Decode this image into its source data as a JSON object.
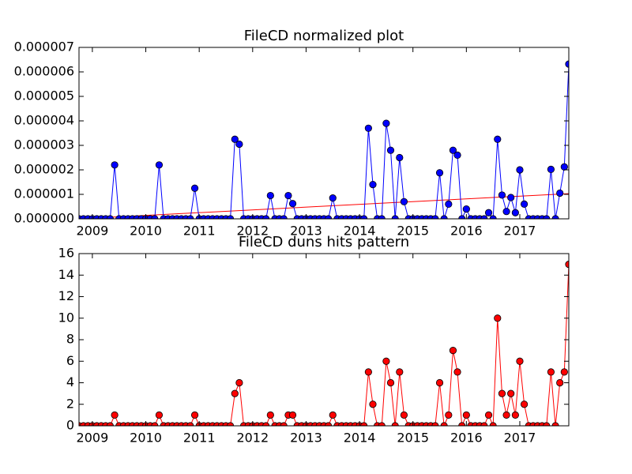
{
  "chart_data": [
    {
      "type": "line",
      "title": "FileCD normalized plot",
      "x": [
        2008.75,
        2008.833,
        2008.917,
        2009,
        2009.083,
        2009.167,
        2009.25,
        2009.333,
        2009.417,
        2009.5,
        2009.583,
        2009.667,
        2009.75,
        2009.833,
        2009.917,
        2010,
        2010.083,
        2010.167,
        2010.25,
        2010.333,
        2010.417,
        2010.5,
        2010.583,
        2010.667,
        2010.75,
        2010.833,
        2010.917,
        2011,
        2011.083,
        2011.167,
        2011.25,
        2011.333,
        2011.417,
        2011.5,
        2011.583,
        2011.667,
        2011.75,
        2011.833,
        2011.917,
        2012,
        2012.083,
        2012.167,
        2012.25,
        2012.333,
        2012.417,
        2012.5,
        2012.583,
        2012.667,
        2012.75,
        2012.833,
        2012.917,
        2013,
        2013.083,
        2013.167,
        2013.25,
        2013.333,
        2013.417,
        2013.5,
        2013.583,
        2013.667,
        2013.75,
        2013.833,
        2013.917,
        2014,
        2014.083,
        2014.167,
        2014.25,
        2014.333,
        2014.417,
        2014.5,
        2014.583,
        2014.667,
        2014.75,
        2014.833,
        2014.917,
        2015,
        2015.083,
        2015.167,
        2015.25,
        2015.333,
        2015.417,
        2015.5,
        2015.583,
        2015.667,
        2015.75,
        2015.833,
        2015.917,
        2016,
        2016.083,
        2016.167,
        2016.25,
        2016.333,
        2016.417,
        2016.5,
        2016.583,
        2016.667,
        2016.75,
        2016.833,
        2016.917,
        2017,
        2017.083,
        2017.167,
        2017.25,
        2017.333,
        2017.417,
        2017.5,
        2017.583,
        2017.667,
        2017.75,
        2017.833,
        2017.917
      ],
      "values": [
        0,
        0,
        0,
        0,
        0,
        0,
        0,
        0,
        2.2e-06,
        0,
        0,
        0,
        0,
        0,
        0,
        0,
        0,
        0,
        2.2e-06,
        0,
        0,
        0,
        0,
        0,
        0,
        0,
        1.25e-06,
        0,
        0,
        0,
        0,
        0,
        0,
        0,
        0,
        3.25e-06,
        3.05e-06,
        0,
        0,
        0,
        0,
        0,
        0,
        9.5e-07,
        0,
        0,
        0,
        9.5e-07,
        6.2e-07,
        0,
        0,
        0,
        0,
        0,
        0,
        0,
        0,
        8.5e-07,
        0,
        0,
        0,
        0,
        0,
        0,
        0,
        3.7e-06,
        1.4e-06,
        0,
        0,
        3.9e-06,
        2.8e-06,
        0,
        2.5e-06,
        7e-07,
        0,
        0,
        0,
        0,
        0,
        0,
        0,
        1.88e-06,
        0,
        6e-07,
        2.8e-06,
        2.6e-06,
        0,
        4e-07,
        0,
        0,
        0,
        0,
        2.5e-07,
        0,
        3.25e-06,
        9.7e-07,
        3e-07,
        8.7e-07,
        2.5e-07,
        2e-06,
        6e-07,
        0,
        0,
        0,
        0,
        0,
        2.02e-06,
        0,
        1.05e-06,
        2.12e-06,
        6.32e-06
      ],
      "color": "#0000ff",
      "marker_edge_color": "#000000",
      "trend_x": [
        2008.75,
        2017.917
      ],
      "trend_values": [
        0,
        1.03e-06
      ],
      "trend_color": "#ff0000",
      "xlim": [
        2008.75,
        2017.917
      ],
      "xticks": [
        2009,
        2010,
        2011,
        2012,
        2013,
        2014,
        2015,
        2016,
        2017
      ],
      "ylim": [
        0,
        7e-06
      ],
      "yticks": [
        {
          "value": 0,
          "label": "0.000000"
        },
        {
          "value": 1e-06,
          "label": "0.000001"
        },
        {
          "value": 2e-06,
          "label": "0.000002"
        },
        {
          "value": 3e-06,
          "label": "0.000003"
        },
        {
          "value": 4e-06,
          "label": "0.000004"
        },
        {
          "value": 5e-06,
          "label": "0.000005"
        },
        {
          "value": 6e-06,
          "label": "0.000006"
        },
        {
          "value": 7e-06,
          "label": "0.000007"
        }
      ]
    },
    {
      "type": "line",
      "title": "FileCD duns hits pattern",
      "x": [
        2008.75,
        2008.833,
        2008.917,
        2009,
        2009.083,
        2009.167,
        2009.25,
        2009.333,
        2009.417,
        2009.5,
        2009.583,
        2009.667,
        2009.75,
        2009.833,
        2009.917,
        2010,
        2010.083,
        2010.167,
        2010.25,
        2010.333,
        2010.417,
        2010.5,
        2010.583,
        2010.667,
        2010.75,
        2010.833,
        2010.917,
        2011,
        2011.083,
        2011.167,
        2011.25,
        2011.333,
        2011.417,
        2011.5,
        2011.583,
        2011.667,
        2011.75,
        2011.833,
        2011.917,
        2012,
        2012.083,
        2012.167,
        2012.25,
        2012.333,
        2012.417,
        2012.5,
        2012.583,
        2012.667,
        2012.75,
        2012.833,
        2012.917,
        2013,
        2013.083,
        2013.167,
        2013.25,
        2013.333,
        2013.417,
        2013.5,
        2013.583,
        2013.667,
        2013.75,
        2013.833,
        2013.917,
        2014,
        2014.083,
        2014.167,
        2014.25,
        2014.333,
        2014.417,
        2014.5,
        2014.583,
        2014.667,
        2014.75,
        2014.833,
        2014.917,
        2015,
        2015.083,
        2015.167,
        2015.25,
        2015.333,
        2015.417,
        2015.5,
        2015.583,
        2015.667,
        2015.75,
        2015.833,
        2015.917,
        2016,
        2016.083,
        2016.167,
        2016.25,
        2016.333,
        2016.417,
        2016.5,
        2016.583,
        2016.667,
        2016.75,
        2016.833,
        2016.917,
        2017,
        2017.083,
        2017.167,
        2017.25,
        2017.333,
        2017.417,
        2017.5,
        2017.583,
        2017.667,
        2017.75,
        2017.833,
        2017.917
      ],
      "values": [
        0,
        0,
        0,
        0,
        0,
        0,
        0,
        0,
        1,
        0,
        0,
        0,
        0,
        0,
        0,
        0,
        0,
        0,
        1,
        0,
        0,
        0,
        0,
        0,
        0,
        0,
        1,
        0,
        0,
        0,
        0,
        0,
        0,
        0,
        0,
        3,
        4,
        0,
        0,
        0,
        0,
        0,
        0,
        1,
        0,
        0,
        0,
        1,
        1,
        0,
        0,
        0,
        0,
        0,
        0,
        0,
        0,
        1,
        0,
        0,
        0,
        0,
        0,
        0,
        0,
        5,
        2,
        0,
        0,
        6,
        4,
        0,
        5,
        1,
        0,
        0,
        0,
        0,
        0,
        0,
        0,
        4,
        0,
        1,
        7,
        5,
        0,
        1,
        0,
        0,
        0,
        0,
        1,
        0,
        10,
        3,
        1,
        3,
        1,
        6,
        2,
        0,
        0,
        0,
        0,
        0,
        5,
        0,
        4,
        5,
        15
      ],
      "color": "#ff0000",
      "marker_edge_color": "#000000",
      "xlim": [
        2008.75,
        2017.917
      ],
      "xticks": [
        2009,
        2010,
        2011,
        2012,
        2013,
        2014,
        2015,
        2016,
        2017
      ],
      "ylim": [
        0,
        16
      ],
      "yticks": [
        0,
        2,
        4,
        6,
        8,
        10,
        12,
        14,
        16
      ]
    }
  ]
}
